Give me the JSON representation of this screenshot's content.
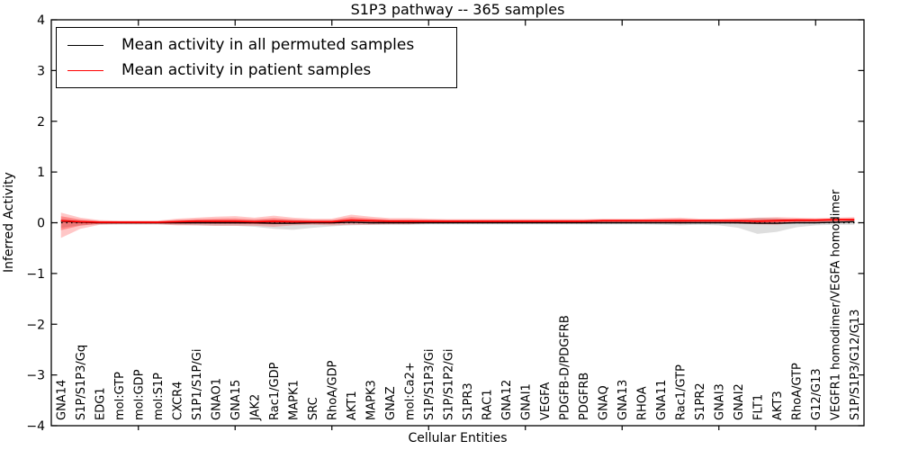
{
  "title": "S1P3 pathway -- 365 samples",
  "chart_data": {
    "type": "line",
    "title": "S1P3 pathway -- 365 samples",
    "xlabel": "Cellular Entities",
    "ylabel": "Inferred Activity",
    "ylim": [
      -4,
      4
    ],
    "yticks": [
      4,
      3,
      2,
      1,
      0,
      -1,
      -2,
      -3,
      -4
    ],
    "yticklabels": [
      "4",
      "3",
      "2",
      "1",
      "0",
      "−1",
      "−2",
      "−3",
      "−4"
    ],
    "grid": false,
    "legend_position": "upper left",
    "zero_line": {
      "y": 0,
      "style": "dotted",
      "color": "#000000"
    },
    "categories": [
      "GNA14",
      "S1P/S1P3/Gq",
      "EDG1",
      "mol:GTP",
      "mol:GDP",
      "mol:S1P",
      "CXCR4",
      "S1P1/S1P/Gi",
      "GNAO1",
      "GNA15",
      "JAK2",
      "Rac1/GDP",
      "MAPK1",
      "SRC",
      "RhoA/GDP",
      "AKT1",
      "MAPK3",
      "GNAZ",
      "mol:Ca2+",
      "S1P/S1P3/Gi",
      "S1P/S1P2/Gi",
      "S1PR3",
      "RAC1",
      "GNA12",
      "GNAI1",
      "VEGFA",
      "PDGFB-D/PDGFRB",
      "PDGFRB",
      "GNAQ",
      "GNA13",
      "RHOA",
      "GNA11",
      "Rac1/GTP",
      "S1PR2",
      "GNAI3",
      "GNAI2",
      "FLT1",
      "AKT3",
      "RhoA/GTP",
      "G12/G13",
      "VEGFR1 homodimer/VEGFA homodimer",
      "S1P/S1P3/G12/G13"
    ],
    "series": [
      {
        "name": "Mean activity in all permuted samples",
        "color": "#000000",
        "band_color": "rgba(0,0,0,0.13)",
        "values": [
          0.03,
          0.01,
          0,
          0,
          0,
          0,
          0,
          0,
          0,
          0,
          0,
          -0.01,
          -0.01,
          0,
          0,
          0.01,
          0,
          0,
          0,
          0,
          0,
          0,
          0,
          0,
          0,
          0,
          0,
          0,
          0,
          0,
          0,
          0,
          0,
          0,
          0,
          0,
          -0.01,
          -0.01,
          0,
          0,
          0.01,
          0.02
        ],
        "band_hi": [
          0.08,
          0.04,
          0.03,
          0.03,
          0.03,
          0.03,
          0.04,
          0.05,
          0.05,
          0.05,
          0.05,
          0.06,
          0.05,
          0.04,
          0.04,
          0.05,
          0.04,
          0.04,
          0.04,
          0.03,
          0.03,
          0.03,
          0.03,
          0.03,
          0.03,
          0.03,
          0.03,
          0.03,
          0.03,
          0.03,
          0.03,
          0.04,
          0.05,
          0.04,
          0.04,
          0.06,
          0.1,
          0.09,
          0.06,
          0.04,
          0.04,
          0.04
        ],
        "band_lo": [
          -0.1,
          -0.05,
          -0.03,
          -0.03,
          -0.03,
          -0.03,
          -0.04,
          -0.05,
          -0.06,
          -0.06,
          -0.08,
          -0.12,
          -0.14,
          -0.1,
          -0.07,
          -0.05,
          -0.04,
          -0.04,
          -0.04,
          -0.03,
          -0.03,
          -0.03,
          -0.03,
          -0.03,
          -0.03,
          -0.03,
          -0.03,
          -0.03,
          -0.03,
          -0.03,
          -0.03,
          -0.04,
          -0.05,
          -0.04,
          -0.05,
          -0.1,
          -0.22,
          -0.18,
          -0.09,
          -0.05,
          -0.04,
          -0.04
        ]
      },
      {
        "name": "Mean activity in patient samples",
        "color": "#ff0000",
        "band_color": "rgba(255,0,0,0.22)",
        "values": [
          0.04,
          0.02,
          0.01,
          0.01,
          0.01,
          0.01,
          0.02,
          0.03,
          0.03,
          0.03,
          0.02,
          0.03,
          0.02,
          0.02,
          0.02,
          0.05,
          0.04,
          0.03,
          0.03,
          0.03,
          0.03,
          0.03,
          0.03,
          0.03,
          0.03,
          0.03,
          0.03,
          0.03,
          0.04,
          0.04,
          0.04,
          0.04,
          0.04,
          0.04,
          0.04,
          0.04,
          0.03,
          0.04,
          0.05,
          0.05,
          0.06,
          0.06
        ],
        "band_hi": [
          0.2,
          0.1,
          0.05,
          0.04,
          0.04,
          0.04,
          0.08,
          0.1,
          0.12,
          0.13,
          0.1,
          0.14,
          0.1,
          0.08,
          0.08,
          0.16,
          0.12,
          0.09,
          0.09,
          0.08,
          0.07,
          0.07,
          0.07,
          0.07,
          0.07,
          0.07,
          0.07,
          0.07,
          0.08,
          0.08,
          0.08,
          0.09,
          0.1,
          0.08,
          0.08,
          0.09,
          0.1,
          0.11,
          0.1,
          0.09,
          0.1,
          0.11
        ],
        "band_lo": [
          -0.3,
          -0.12,
          -0.04,
          -0.03,
          -0.03,
          -0.03,
          -0.05,
          -0.05,
          -0.06,
          -0.06,
          -0.06,
          -0.08,
          -0.05,
          -0.04,
          -0.05,
          -0.04,
          -0.04,
          -0.03,
          -0.03,
          -0.01,
          -0.01,
          0,
          0,
          0,
          0,
          0,
          0,
          0,
          0,
          0,
          0,
          0,
          -0.02,
          0,
          0,
          -0.02,
          -0.03,
          -0.04,
          0,
          0.01,
          0.02,
          0.02
        ]
      }
    ]
  }
}
